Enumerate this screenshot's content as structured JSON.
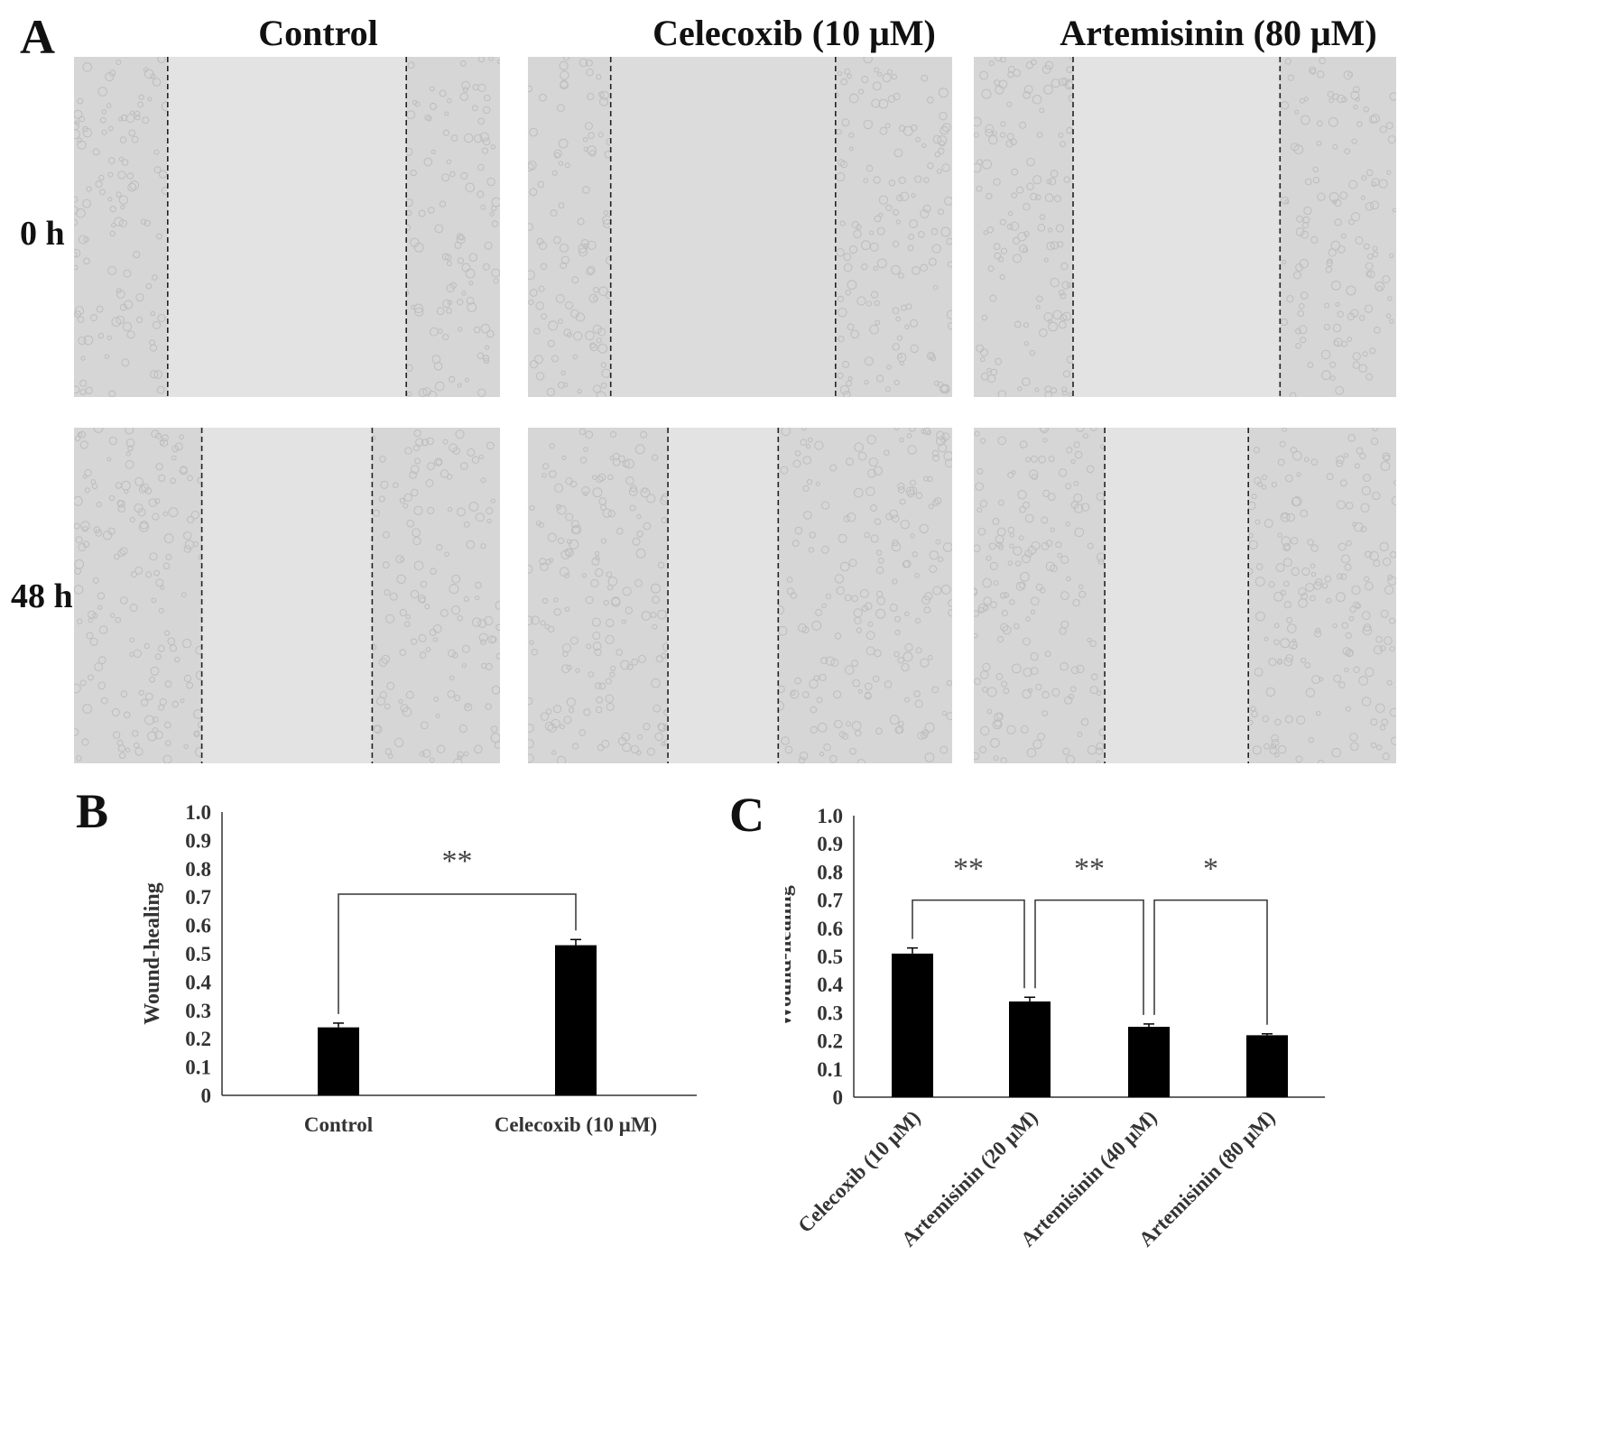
{
  "panel_labels": {
    "a": "A",
    "b": "B",
    "c": "C"
  },
  "panel_a": {
    "columns": [
      "Control",
      "Celecoxib (10 μM)",
      "Artemisinin (80 μM)"
    ],
    "rows": [
      "0 h",
      "48 h"
    ],
    "wound_relative_width": [
      [
        0.56,
        0.53,
        0.49
      ],
      [
        0.4,
        0.26,
        0.34
      ]
    ]
  },
  "chart_data": [
    {
      "panel": "B",
      "type": "bar",
      "categories": [
        "Control",
        "Celecoxib (10 μM)"
      ],
      "values": [
        0.24,
        0.53
      ],
      "errors": [
        0.015,
        0.02
      ],
      "ylabel": "Wound-healing",
      "ylim": [
        0,
        1.0
      ],
      "yticks": [
        "0",
        "0.1",
        "0.2",
        "0.3",
        "0.4",
        "0.5",
        "0.6",
        "0.7",
        "0.8",
        "0.9",
        "1.0"
      ],
      "grid": false,
      "significance": [
        {
          "from": 0,
          "to": 1,
          "label": "**"
        }
      ]
    },
    {
      "panel": "C",
      "type": "bar",
      "categories": [
        "Celecoxib (10 μM)",
        "Artemisinin (20 μM)",
        "Artemisinin (40 μM)",
        "Artemisinin (80 μM)"
      ],
      "values": [
        0.51,
        0.34,
        0.25,
        0.22
      ],
      "errors": [
        0.02,
        0.015,
        0.01,
        0.005
      ],
      "ylabel": "Wound-healing",
      "ylim": [
        0,
        1.0
      ],
      "yticks": [
        "0",
        "0.1",
        "0.2",
        "0.3",
        "0.4",
        "0.5",
        "0.6",
        "0.7",
        "0.8",
        "0.9",
        "1.0"
      ],
      "grid": false,
      "significance": [
        {
          "from": 0,
          "to": 1,
          "label": "**"
        },
        {
          "from": 1,
          "to": 2,
          "label": "**"
        },
        {
          "from": 2,
          "to": 3,
          "label": "*"
        }
      ]
    }
  ]
}
